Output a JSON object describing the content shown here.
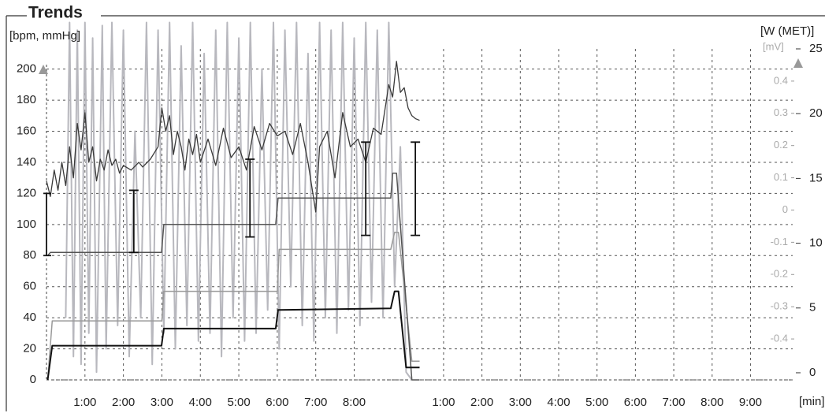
{
  "chart_data": {
    "type": "line",
    "title": "Trends",
    "y_label": "[bpm, mmHg]",
    "y2_label": "[W (MET)]",
    "y3_label": "[mV]",
    "x_label": "[min]",
    "grid": true,
    "xlim": [
      0,
      19.4
    ],
    "xticks": [
      {
        "value": 1,
        "label": "1:00"
      },
      {
        "value": 2,
        "label": "2:00"
      },
      {
        "value": 3,
        "label": "3:00"
      },
      {
        "value": 4,
        "label": "4:00"
      },
      {
        "value": 5,
        "label": "5:00"
      },
      {
        "value": 6,
        "label": "6:00"
      },
      {
        "value": 7,
        "label": "7:00"
      },
      {
        "value": 8,
        "label": "8:00"
      }
    ],
    "x2lim": [
      -9.35,
      10.1
    ],
    "x2ticks": [
      {
        "value": 1,
        "label": "1:00"
      },
      {
        "value": 2,
        "label": "2:00"
      },
      {
        "value": 3,
        "label": "3:00"
      },
      {
        "value": 4,
        "label": "4:00"
      },
      {
        "value": 5,
        "label": "5:00"
      },
      {
        "value": 6,
        "label": "6:00"
      },
      {
        "value": 7,
        "label": "7:00"
      },
      {
        "value": 8,
        "label": "8:00"
      },
      {
        "value": 9,
        "label": "9:00"
      }
    ],
    "ylim": [
      0,
      213
    ],
    "yticks": [
      0,
      20,
      40,
      60,
      80,
      100,
      120,
      140,
      160,
      180,
      200
    ],
    "y2lim": [
      -0.55,
      25
    ],
    "y2ticks": [
      0,
      5,
      10,
      15,
      20,
      25
    ],
    "y3lim": [
      -0.527,
      0.5
    ],
    "y3ticks": [
      -0.4,
      -0.3,
      -0.2,
      -0.1,
      0,
      0.1,
      0.2,
      0.3,
      0.4
    ],
    "series": [
      {
        "color": "#b8b8be",
        "width": 2,
        "x": [
          0.5,
          0.6,
          0.7,
          0.8,
          0.9,
          1.0,
          1.1,
          1.2,
          1.3,
          1.45,
          1.55,
          1.7,
          1.85,
          2.0,
          2.15,
          2.3,
          2.45,
          2.6,
          2.75,
          2.9,
          3.05,
          3.2,
          3.35,
          3.5,
          3.65,
          3.8,
          3.95,
          4.1,
          4.25,
          4.4,
          4.55,
          4.7,
          4.85,
          5.0,
          5.15,
          5.3,
          5.45,
          5.6,
          5.75,
          5.9,
          6.05,
          6.2,
          6.35,
          6.5,
          6.65,
          6.8,
          6.95,
          7.1,
          7.25,
          7.4,
          7.55,
          7.7,
          7.85,
          8.0,
          8.15,
          8.3,
          8.45,
          8.6,
          8.75,
          8.9,
          9.05,
          9.2,
          9.35,
          9.5
        ],
        "values": [
          40,
          230,
          15,
          225,
          10,
          230,
          30,
          220,
          5,
          228,
          20,
          230,
          35,
          225,
          15,
          160,
          40,
          230,
          10,
          225,
          30,
          230,
          20,
          215,
          35,
          230,
          25,
          210,
          30,
          225,
          15,
          230,
          40,
          220,
          25,
          230,
          30,
          200,
          45,
          230,
          20,
          225,
          60,
          230,
          35,
          210,
          25,
          230,
          40,
          225,
          30,
          230,
          45,
          220,
          35,
          230,
          50,
          225,
          40,
          230,
          60,
          150,
          5,
          0
        ]
      },
      {
        "color": "#9a9a9a",
        "width": 1.5,
        "x": [
          0.03,
          0.15,
          3.0,
          3.05,
          6.0,
          6.05,
          8.95,
          9.05,
          9.15,
          9.5,
          9.7
        ],
        "values": [
          0,
          38,
          38,
          57,
          57,
          84,
          84,
          95,
          95,
          12,
          12
        ]
      },
      {
        "color": "#555555",
        "width": 1.5,
        "x": [
          0.03,
          0.1,
          2.99,
          3.05,
          5.96,
          6.02,
          8.95,
          9.0,
          9.1,
          9.5,
          9.7
        ],
        "values": [
          80,
          82,
          82,
          100,
          100,
          117,
          117,
          133,
          133,
          0,
          0
        ]
      },
      {
        "color": "#111111",
        "width": 2,
        "x": [
          0.03,
          0.15,
          2.99,
          3.05,
          5.96,
          6.02,
          8.95,
          9.05,
          9.15,
          9.35,
          9.7
        ],
        "values": [
          0,
          22,
          22,
          33,
          33,
          45,
          46,
          57,
          57,
          8,
          8
        ]
      },
      {
        "color": "#3a3a3a",
        "width": 1.3,
        "x": [
          0.0,
          0.1,
          0.2,
          0.3,
          0.4,
          0.5,
          0.6,
          0.7,
          0.8,
          0.9,
          1.0,
          1.1,
          1.2,
          1.3,
          1.4,
          1.5,
          1.6,
          1.7,
          1.8,
          1.9,
          2.0,
          2.2,
          2.4,
          2.5,
          2.7,
          2.9,
          3.0,
          3.1,
          3.2,
          3.3,
          3.4,
          3.5,
          3.6,
          3.7,
          3.8,
          3.9,
          4.0,
          4.2,
          4.4,
          4.6,
          4.8,
          5.0,
          5.2,
          5.4,
          5.6,
          5.8,
          6.0,
          6.2,
          6.4,
          6.6,
          6.8,
          7.0,
          7.1,
          7.3,
          7.5,
          7.7,
          7.9,
          8.1,
          8.3,
          8.5,
          8.7,
          8.9,
          9.0,
          9.1,
          9.2,
          9.3,
          9.4,
          9.5,
          9.6,
          9.7
        ],
        "values": [
          128,
          118,
          135,
          122,
          140,
          125,
          150,
          130,
          165,
          148,
          172,
          140,
          150,
          128,
          142,
          135,
          148,
          138,
          142,
          133,
          138,
          135,
          140,
          137,
          142,
          150,
          175,
          160,
          170,
          145,
          160,
          150,
          135,
          155,
          145,
          158,
          140,
          155,
          138,
          162,
          143,
          150,
          135,
          163,
          148,
          165,
          157,
          160,
          145,
          165,
          140,
          108,
          150,
          160,
          130,
          172,
          150,
          155,
          140,
          162,
          158,
          190,
          182,
          205,
          185,
          188,
          175,
          170,
          168,
          167
        ]
      }
    ],
    "bp": {
      "color": "#111111",
      "x": [
        0,
        2.27,
        5.29,
        8.3,
        9.59
      ],
      "systolic": [
        120,
        122,
        142,
        153,
        153
      ],
      "diastolic": [
        80,
        82,
        92,
        93,
        93
      ]
    }
  }
}
